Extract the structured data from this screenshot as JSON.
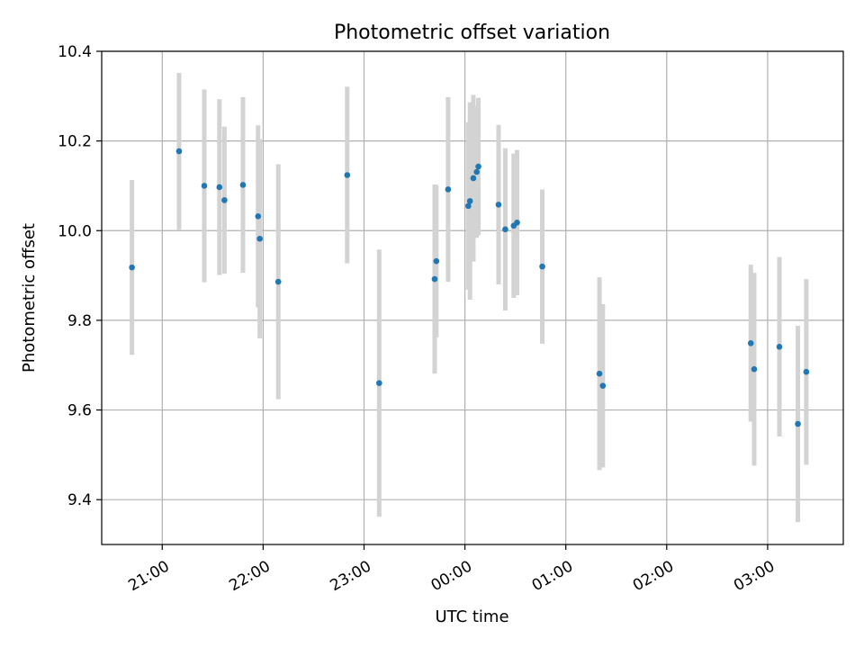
{
  "chart_data": {
    "type": "scatter",
    "title": "Photometric offset variation",
    "xlabel": "UTC time",
    "ylabel": "Photometric offset",
    "x_tick_labels": [
      "21:00",
      "22:00",
      "23:00",
      "00:00",
      "01:00",
      "02:00",
      "03:00"
    ],
    "x_tick_hours": [
      21,
      22,
      23,
      24,
      25,
      26,
      27
    ],
    "xlim_hours": [
      20.4,
      27.75
    ],
    "y_tick_labels": [
      "9.4",
      "9.6",
      "9.8",
      "10.0",
      "10.2",
      "10.4"
    ],
    "y_ticks": [
      9.4,
      9.6,
      9.8,
      10.0,
      10.2,
      10.4
    ],
    "ylim": [
      9.3,
      10.4
    ],
    "grid": true,
    "colors": {
      "point": "#1f77b4",
      "errorbar": "#d3d3d3",
      "grid": "#b0b0b0"
    },
    "points": [
      {
        "time": "20:42",
        "y": 9.918,
        "err": 0.195
      },
      {
        "time": "21:10",
        "y": 10.177,
        "err": 0.175
      },
      {
        "time": "21:25",
        "y": 10.1,
        "err": 0.215
      },
      {
        "time": "21:34",
        "y": 10.097,
        "err": 0.196
      },
      {
        "time": "21:37",
        "y": 10.068,
        "err": 0.164
      },
      {
        "time": "21:48",
        "y": 10.102,
        "err": 0.196
      },
      {
        "time": "21:57",
        "y": 10.032,
        "err": 0.203
      },
      {
        "time": "21:58",
        "y": 9.982,
        "err": 0.222
      },
      {
        "time": "22:09",
        "y": 9.886,
        "err": 0.262
      },
      {
        "time": "22:50",
        "y": 10.124,
        "err": 0.197
      },
      {
        "time": "23:09",
        "y": 9.66,
        "err": 0.298
      },
      {
        "time": "23:42",
        "y": 9.892,
        "err": 0.211
      },
      {
        "time": "23:43",
        "y": 9.932,
        "err": 0.17
      },
      {
        "time": "23:50",
        "y": 10.092,
        "err": 0.206
      },
      {
        "time": "00:02",
        "y": 10.055,
        "err": 0.187
      },
      {
        "time": "00:03",
        "y": 10.066,
        "err": 0.22
      },
      {
        "time": "00:05",
        "y": 10.117,
        "err": 0.186
      },
      {
        "time": "00:07",
        "y": 10.131,
        "err": 0.147
      },
      {
        "time": "00:08",
        "y": 10.143,
        "err": 0.153
      },
      {
        "time": "00:20",
        "y": 10.058,
        "err": 0.178
      },
      {
        "time": "00:24",
        "y": 10.003,
        "err": 0.181
      },
      {
        "time": "00:29",
        "y": 10.011,
        "err": 0.161
      },
      {
        "time": "00:31",
        "y": 10.018,
        "err": 0.162
      },
      {
        "time": "00:46",
        "y": 9.92,
        "err": 0.172
      },
      {
        "time": "01:20",
        "y": 9.681,
        "err": 0.215
      },
      {
        "time": "01:22",
        "y": 9.654,
        "err": 0.182
      },
      {
        "time": "02:50",
        "y": 9.749,
        "err": 0.175
      },
      {
        "time": "02:52",
        "y": 9.691,
        "err": 0.215
      },
      {
        "time": "03:07",
        "y": 9.741,
        "err": 0.2
      },
      {
        "time": "03:18",
        "y": 9.569,
        "err": 0.219
      },
      {
        "time": "03:23",
        "y": 9.685,
        "err": 0.207
      }
    ]
  }
}
